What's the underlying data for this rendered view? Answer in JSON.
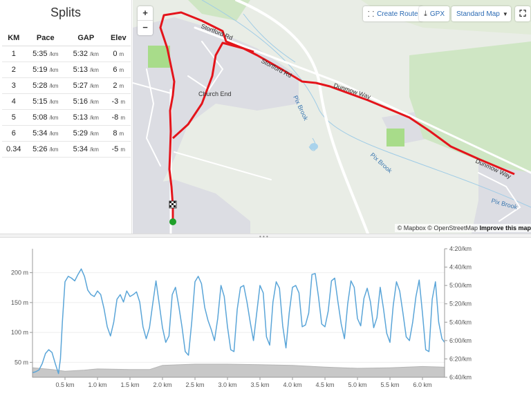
{
  "splits": {
    "title": "Splits",
    "headers": [
      "KM",
      "Pace",
      "GAP",
      "Elev"
    ],
    "pace_unit": "/km",
    "elev_unit": "m",
    "rows": [
      {
        "km": "1",
        "pace": "5:35",
        "gap": "5:32",
        "elev": "0"
      },
      {
        "km": "2",
        "pace": "5:19",
        "gap": "5:13",
        "elev": "6"
      },
      {
        "km": "3",
        "pace": "5:28",
        "gap": "5:27",
        "elev": "2"
      },
      {
        "km": "4",
        "pace": "5:15",
        "gap": "5:16",
        "elev": "-3"
      },
      {
        "km": "5",
        "pace": "5:08",
        "gap": "5:13",
        "elev": "-8"
      },
      {
        "km": "6",
        "pace": "5:34",
        "gap": "5:29",
        "elev": "8"
      },
      {
        "km": "0.34",
        "pace": "5:26",
        "gap": "5:34",
        "elev": "-5"
      }
    ]
  },
  "map": {
    "zoom_in": "+",
    "zoom_out": "−",
    "create_route": "Create Route",
    "gpx": "GPX",
    "map_style": "Standard Map",
    "fullscreen": "⛶",
    "labels": {
      "stortford_rd_1": "Stortford Rd",
      "stortford_rd_2": "Stortford Rd",
      "church_end": "Church End",
      "pix_brook_1": "Pix Brook",
      "pix_brook_2": "Pix Brook",
      "pix_brook_3": "Pix Brook",
      "road_way_1": "Dunmow Way",
      "road_way_2": "Dunmow Way"
    },
    "attribution_mapbox": "© Mapbox",
    "attribution_osm": "© OpenStreetMap",
    "attribution_improve": "Improve this map",
    "route_color": "#e4141b",
    "start_color": "#1fa02a"
  },
  "chart_data": {
    "type": "line",
    "x_ticks": [
      "0.5 km",
      "1.0 km",
      "1.5 km",
      "2.0 km",
      "2.5 km",
      "3.0 km",
      "3.5 km",
      "4.0 km",
      "4.5 km",
      "5.0 km",
      "5.5 km",
      "6.0 km"
    ],
    "x_tick_values": [
      0.5,
      1.0,
      1.5,
      2.0,
      2.5,
      3.0,
      3.5,
      4.0,
      4.5,
      5.0,
      5.5,
      6.0
    ],
    "xlim": [
      0,
      6.34
    ],
    "y_left_ticks": [
      "50 m",
      "100 m",
      "150 m",
      "200 m"
    ],
    "y_left_values": [
      50,
      100,
      150,
      200
    ],
    "y_left_lim": [
      25,
      240
    ],
    "y_right_ticks": [
      "4:20/km",
      "4:40/km",
      "5:00/km",
      "5:20/km",
      "5:40/km",
      "6:00/km",
      "6:20/km",
      "6:40/km"
    ],
    "y_right_values": [
      260,
      280,
      300,
      320,
      340,
      360,
      380,
      400
    ],
    "y_right_lim": [
      260,
      400
    ],
    "pace_color": "#5aa5d8",
    "elevation_color": "#c8c8c8",
    "series": [
      {
        "kind": "pace",
        "x": [
          0.0,
          0.05,
          0.1,
          0.15,
          0.2,
          0.25,
          0.3,
          0.35,
          0.4,
          0.43,
          0.46,
          0.5,
          0.55,
          0.6,
          0.65,
          0.7,
          0.75,
          0.8,
          0.85,
          0.9,
          0.95,
          1.0,
          1.05,
          1.1,
          1.15,
          1.2,
          1.25,
          1.3,
          1.35,
          1.4,
          1.45,
          1.5,
          1.55,
          1.6,
          1.65,
          1.7,
          1.75,
          1.8,
          1.85,
          1.9,
          1.95,
          2.0,
          2.05,
          2.1,
          2.15,
          2.2,
          2.25,
          2.3,
          2.35,
          2.4,
          2.45,
          2.5,
          2.55,
          2.6,
          2.65,
          2.7,
          2.75,
          2.8,
          2.85,
          2.9,
          2.95,
          3.0,
          3.05,
          3.1,
          3.15,
          3.2,
          3.25,
          3.3,
          3.35,
          3.4,
          3.45,
          3.5,
          3.55,
          3.6,
          3.65,
          3.7,
          3.75,
          3.8,
          3.85,
          3.9,
          3.95,
          4.0,
          4.05,
          4.1,
          4.15,
          4.2,
          4.25,
          4.3,
          4.35,
          4.4,
          4.45,
          4.5,
          4.55,
          4.6,
          4.65,
          4.7,
          4.75,
          4.8,
          4.85,
          4.9,
          4.95,
          5.0,
          5.05,
          5.1,
          5.15,
          5.2,
          5.25,
          5.3,
          5.35,
          5.4,
          5.45,
          5.5,
          5.55,
          5.6,
          5.65,
          5.7,
          5.75,
          5.8,
          5.85,
          5.9,
          5.95,
          6.0,
          6.05,
          6.1,
          6.15,
          6.2,
          6.25,
          6.3,
          6.34
        ],
        "y": [
          395,
          394,
          392,
          385,
          374,
          370,
          373,
          385,
          396,
          380,
          340,
          296,
          290,
          292,
          295,
          288,
          282,
          290,
          305,
          310,
          312,
          306,
          310,
          325,
          345,
          355,
          340,
          315,
          310,
          318,
          306,
          312,
          310,
          307,
          318,
          345,
          358,
          346,
          320,
          295,
          320,
          346,
          362,
          355,
          310,
          302,
          322,
          345,
          372,
          376,
          340,
          296,
          290,
          298,
          324,
          338,
          348,
          360,
          336,
          300,
          312,
          345,
          370,
          372,
          326,
          302,
          300,
          318,
          340,
          360,
          330,
          300,
          308,
          356,
          365,
          318,
          296,
          303,
          344,
          368,
          330,
          302,
          300,
          308,
          345,
          343,
          330,
          288,
          287,
          312,
          342,
          345,
          328,
          295,
          292,
          318,
          342,
          358,
          320,
          295,
          302,
          336,
          344,
          314,
          303,
          318,
          346,
          335,
          302,
          325,
          352,
          362,
          322,
          296,
          306,
          330,
          356,
          360,
          340,
          312,
          294,
          330,
          370,
          372,
          315,
          296,
          340,
          358,
          362
        ]
      },
      {
        "kind": "elevation",
        "x": [
          0,
          0.3,
          0.5,
          0.8,
          1.0,
          1.5,
          1.8,
          2.0,
          2.5,
          3.0,
          3.5,
          4.0,
          4.5,
          5.0,
          5.5,
          6.0,
          6.34
        ],
        "y": [
          41,
          38,
          35,
          37,
          39,
          38,
          38,
          45,
          47,
          47,
          46,
          45,
          42,
          40,
          41,
          43,
          42
        ]
      }
    ]
  }
}
